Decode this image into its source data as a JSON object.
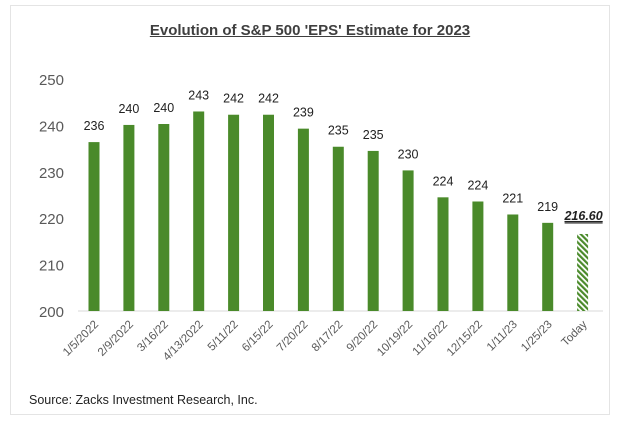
{
  "chart_data": {
    "type": "bar",
    "title": "Evolution of S&P 500 'EPS' Estimate for 2023",
    "source": "Source: Zacks Investment Research, Inc.",
    "categories": [
      "1/5/2022",
      "2/9/2022",
      "3/16/22",
      "4/13/2022",
      "5/11/22",
      "6/15/22",
      "7/20/22",
      "8/17/22",
      "9/20/22",
      "10/19/22",
      "11/16/22",
      "12/15/22",
      "1/11/23",
      "1/25/23",
      "Today"
    ],
    "values": [
      236.4,
      240.1,
      240.3,
      243.0,
      242.3,
      242.3,
      239.3,
      235.4,
      234.5,
      230.3,
      224.5,
      223.6,
      220.8,
      219.0,
      216.6
    ],
    "data_labels": [
      "236",
      "240",
      "240",
      "243",
      "242",
      "242",
      "239",
      "235",
      "235",
      "230",
      "224",
      "224",
      "221",
      "219",
      "216.60"
    ],
    "ylim": [
      200,
      250
    ],
    "yticks": [
      "200",
      "210",
      "220",
      "230",
      "240",
      "250"
    ],
    "grid": false,
    "colors": {
      "bar": "#4a8a2a",
      "highlight_bar": "hatched #4a8a2a"
    },
    "highlighted_category": "Today"
  }
}
